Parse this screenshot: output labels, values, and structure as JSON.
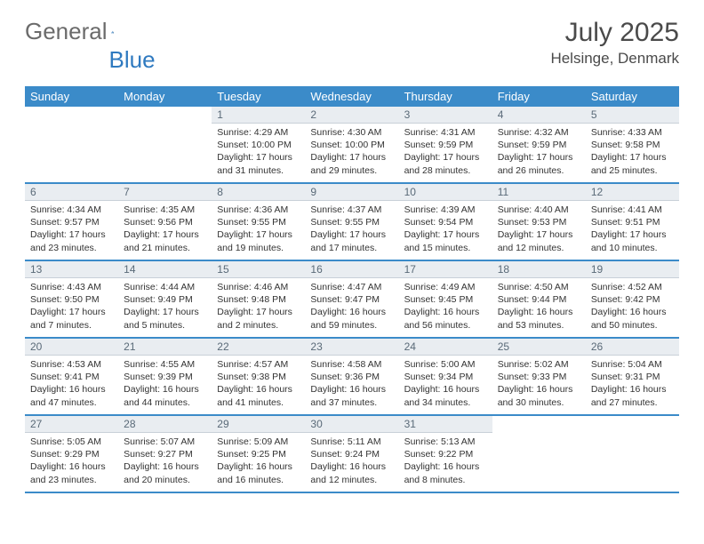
{
  "brand": {
    "word1": "General",
    "word2": "Blue"
  },
  "header": {
    "month_title": "July 2025",
    "location": "Helsinge, Denmark"
  },
  "weekdays": [
    "Sunday",
    "Monday",
    "Tuesday",
    "Wednesday",
    "Thursday",
    "Friday",
    "Saturday"
  ],
  "colors": {
    "header_bg": "#3b8bc9",
    "header_text": "#ffffff",
    "daynum_bg": "#e9edf1",
    "daynum_text": "#5a6a78",
    "divider": "#3b8bc9",
    "logo_gray": "#6b6b6b",
    "logo_blue": "#2f7ac0"
  },
  "grid": [
    [
      null,
      null,
      {
        "n": "1",
        "sr": "Sunrise: 4:29 AM",
        "ss": "Sunset: 10:00 PM",
        "dl1": "Daylight: 17 hours",
        "dl2": "and 31 minutes."
      },
      {
        "n": "2",
        "sr": "Sunrise: 4:30 AM",
        "ss": "Sunset: 10:00 PM",
        "dl1": "Daylight: 17 hours",
        "dl2": "and 29 minutes."
      },
      {
        "n": "3",
        "sr": "Sunrise: 4:31 AM",
        "ss": "Sunset: 9:59 PM",
        "dl1": "Daylight: 17 hours",
        "dl2": "and 28 minutes."
      },
      {
        "n": "4",
        "sr": "Sunrise: 4:32 AM",
        "ss": "Sunset: 9:59 PM",
        "dl1": "Daylight: 17 hours",
        "dl2": "and 26 minutes."
      },
      {
        "n": "5",
        "sr": "Sunrise: 4:33 AM",
        "ss": "Sunset: 9:58 PM",
        "dl1": "Daylight: 17 hours",
        "dl2": "and 25 minutes."
      }
    ],
    [
      {
        "n": "6",
        "sr": "Sunrise: 4:34 AM",
        "ss": "Sunset: 9:57 PM",
        "dl1": "Daylight: 17 hours",
        "dl2": "and 23 minutes."
      },
      {
        "n": "7",
        "sr": "Sunrise: 4:35 AM",
        "ss": "Sunset: 9:56 PM",
        "dl1": "Daylight: 17 hours",
        "dl2": "and 21 minutes."
      },
      {
        "n": "8",
        "sr": "Sunrise: 4:36 AM",
        "ss": "Sunset: 9:55 PM",
        "dl1": "Daylight: 17 hours",
        "dl2": "and 19 minutes."
      },
      {
        "n": "9",
        "sr": "Sunrise: 4:37 AM",
        "ss": "Sunset: 9:55 PM",
        "dl1": "Daylight: 17 hours",
        "dl2": "and 17 minutes."
      },
      {
        "n": "10",
        "sr": "Sunrise: 4:39 AM",
        "ss": "Sunset: 9:54 PM",
        "dl1": "Daylight: 17 hours",
        "dl2": "and 15 minutes."
      },
      {
        "n": "11",
        "sr": "Sunrise: 4:40 AM",
        "ss": "Sunset: 9:53 PM",
        "dl1": "Daylight: 17 hours",
        "dl2": "and 12 minutes."
      },
      {
        "n": "12",
        "sr": "Sunrise: 4:41 AM",
        "ss": "Sunset: 9:51 PM",
        "dl1": "Daylight: 17 hours",
        "dl2": "and 10 minutes."
      }
    ],
    [
      {
        "n": "13",
        "sr": "Sunrise: 4:43 AM",
        "ss": "Sunset: 9:50 PM",
        "dl1": "Daylight: 17 hours",
        "dl2": "and 7 minutes."
      },
      {
        "n": "14",
        "sr": "Sunrise: 4:44 AM",
        "ss": "Sunset: 9:49 PM",
        "dl1": "Daylight: 17 hours",
        "dl2": "and 5 minutes."
      },
      {
        "n": "15",
        "sr": "Sunrise: 4:46 AM",
        "ss": "Sunset: 9:48 PM",
        "dl1": "Daylight: 17 hours",
        "dl2": "and 2 minutes."
      },
      {
        "n": "16",
        "sr": "Sunrise: 4:47 AM",
        "ss": "Sunset: 9:47 PM",
        "dl1": "Daylight: 16 hours",
        "dl2": "and 59 minutes."
      },
      {
        "n": "17",
        "sr": "Sunrise: 4:49 AM",
        "ss": "Sunset: 9:45 PM",
        "dl1": "Daylight: 16 hours",
        "dl2": "and 56 minutes."
      },
      {
        "n": "18",
        "sr": "Sunrise: 4:50 AM",
        "ss": "Sunset: 9:44 PM",
        "dl1": "Daylight: 16 hours",
        "dl2": "and 53 minutes."
      },
      {
        "n": "19",
        "sr": "Sunrise: 4:52 AM",
        "ss": "Sunset: 9:42 PM",
        "dl1": "Daylight: 16 hours",
        "dl2": "and 50 minutes."
      }
    ],
    [
      {
        "n": "20",
        "sr": "Sunrise: 4:53 AM",
        "ss": "Sunset: 9:41 PM",
        "dl1": "Daylight: 16 hours",
        "dl2": "and 47 minutes."
      },
      {
        "n": "21",
        "sr": "Sunrise: 4:55 AM",
        "ss": "Sunset: 9:39 PM",
        "dl1": "Daylight: 16 hours",
        "dl2": "and 44 minutes."
      },
      {
        "n": "22",
        "sr": "Sunrise: 4:57 AM",
        "ss": "Sunset: 9:38 PM",
        "dl1": "Daylight: 16 hours",
        "dl2": "and 41 minutes."
      },
      {
        "n": "23",
        "sr": "Sunrise: 4:58 AM",
        "ss": "Sunset: 9:36 PM",
        "dl1": "Daylight: 16 hours",
        "dl2": "and 37 minutes."
      },
      {
        "n": "24",
        "sr": "Sunrise: 5:00 AM",
        "ss": "Sunset: 9:34 PM",
        "dl1": "Daylight: 16 hours",
        "dl2": "and 34 minutes."
      },
      {
        "n": "25",
        "sr": "Sunrise: 5:02 AM",
        "ss": "Sunset: 9:33 PM",
        "dl1": "Daylight: 16 hours",
        "dl2": "and 30 minutes."
      },
      {
        "n": "26",
        "sr": "Sunrise: 5:04 AM",
        "ss": "Sunset: 9:31 PM",
        "dl1": "Daylight: 16 hours",
        "dl2": "and 27 minutes."
      }
    ],
    [
      {
        "n": "27",
        "sr": "Sunrise: 5:05 AM",
        "ss": "Sunset: 9:29 PM",
        "dl1": "Daylight: 16 hours",
        "dl2": "and 23 minutes."
      },
      {
        "n": "28",
        "sr": "Sunrise: 5:07 AM",
        "ss": "Sunset: 9:27 PM",
        "dl1": "Daylight: 16 hours",
        "dl2": "and 20 minutes."
      },
      {
        "n": "29",
        "sr": "Sunrise: 5:09 AM",
        "ss": "Sunset: 9:25 PM",
        "dl1": "Daylight: 16 hours",
        "dl2": "and 16 minutes."
      },
      {
        "n": "30",
        "sr": "Sunrise: 5:11 AM",
        "ss": "Sunset: 9:24 PM",
        "dl1": "Daylight: 16 hours",
        "dl2": "and 12 minutes."
      },
      {
        "n": "31",
        "sr": "Sunrise: 5:13 AM",
        "ss": "Sunset: 9:22 PM",
        "dl1": "Daylight: 16 hours",
        "dl2": "and 8 minutes."
      },
      null,
      null
    ]
  ]
}
